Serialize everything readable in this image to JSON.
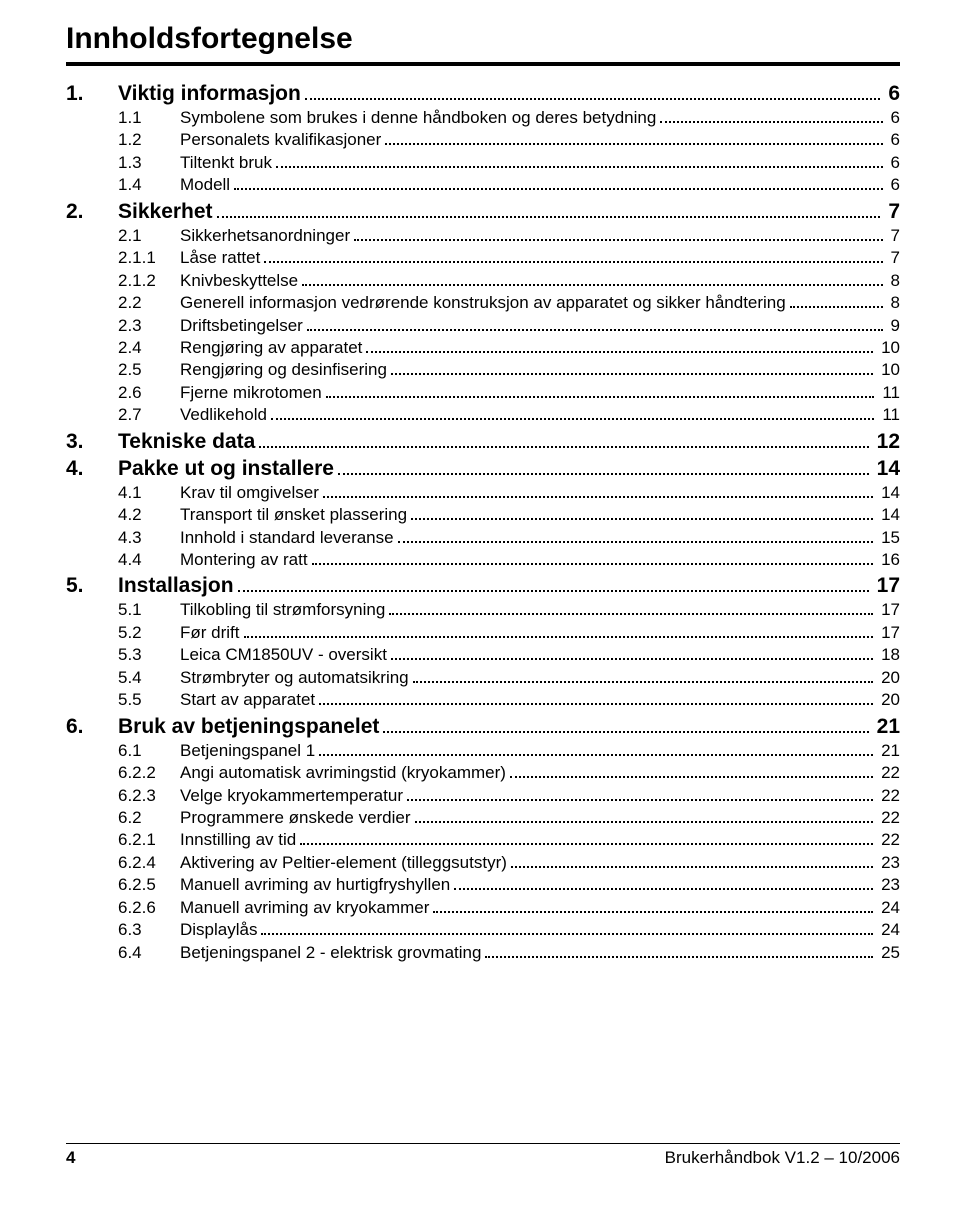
{
  "title": "Innholdsfortegnelse",
  "sections": [
    {
      "num": "1.",
      "label": "Viktig informasjon",
      "page": "6",
      "items": [
        {
          "num": "1.1",
          "label": "Symbolene som brukes i denne håndboken og deres betydning",
          "page": "6"
        },
        {
          "num": "1.2",
          "label": "Personalets kvalifikasjoner",
          "page": "6"
        },
        {
          "num": "1.3",
          "label": "Tiltenkt bruk",
          "page": "6"
        },
        {
          "num": "1.4",
          "label": "Modell",
          "page": "6"
        }
      ]
    },
    {
      "num": "2.",
      "label": "Sikkerhet",
      "page": "7",
      "items": [
        {
          "num": "2.1",
          "label": "Sikkerhetsanordninger",
          "page": "7"
        },
        {
          "num": "2.1.1",
          "label": "Låse rattet",
          "page": "7"
        },
        {
          "num": "2.1.2",
          "label": "Knivbeskyttelse",
          "page": "8"
        },
        {
          "num": "2.2",
          "label": "Generell informasjon vedrørende konstruksjon av apparatet og sikker håndtering",
          "page": "8"
        },
        {
          "num": "2.3",
          "label": "Driftsbetingelser",
          "page": "9"
        },
        {
          "num": "2.4",
          "label": "Rengjøring av apparatet",
          "page": "10"
        },
        {
          "num": "2.5",
          "label": "Rengjøring og desinfisering",
          "page": "10"
        },
        {
          "num": "2.6",
          "label": "Fjerne mikrotomen",
          "page": "11"
        },
        {
          "num": "2.7",
          "label": "Vedlikehold",
          "page": "11"
        }
      ]
    },
    {
      "num": "3.",
      "label": "Tekniske data",
      "page": "12",
      "items": []
    },
    {
      "num": "4.",
      "label": "Pakke ut og installere",
      "page": "14",
      "items": [
        {
          "num": "4.1",
          "label": "Krav til omgivelser",
          "page": "14"
        },
        {
          "num": "4.2",
          "label": "Transport til ønsket plassering",
          "page": "14"
        },
        {
          "num": "4.3",
          "label": "Innhold i standard leveranse",
          "page": "15"
        },
        {
          "num": "4.4",
          "label": "Montering av ratt",
          "page": "16"
        }
      ]
    },
    {
      "num": "5.",
      "label": "Installasjon",
      "page": "17",
      "items": [
        {
          "num": "5.1",
          "label": "Tilkobling til strømforsyning",
          "page": "17"
        },
        {
          "num": "5.2",
          "label": "Før drift",
          "page": "17"
        },
        {
          "num": "5.3",
          "label": "Leica CM1850UV - oversikt",
          "page": "18"
        },
        {
          "num": "5.4",
          "label": "Strømbryter og automatsikring",
          "page": "20"
        },
        {
          "num": "5.5",
          "label": "Start av apparatet",
          "page": "20"
        }
      ]
    },
    {
      "num": "6.",
      "label": "Bruk av betjeningspanelet",
      "page": "21",
      "items": [
        {
          "num": "6.1",
          "label": "Betjeningspanel 1",
          "page": "21"
        },
        {
          "num": "6.2.2",
          "label": "Angi automatisk avrimingstid (kryokammer)",
          "page": "22"
        },
        {
          "num": "6.2.3",
          "label": "Velge kryokammertemperatur",
          "page": "22"
        },
        {
          "num": "6.2",
          "label": "Programmere ønskede verdier",
          "page": "22"
        },
        {
          "num": "6.2.1",
          "label": "Innstilling av tid",
          "page": "22"
        },
        {
          "num": "6.2.4",
          "label": "Aktivering av Peltier-element (tilleggsutstyr)",
          "page": "23"
        },
        {
          "num": "6.2.5",
          "label": "Manuell avriming av hurtigfryshyllen",
          "page": "23"
        },
        {
          "num": "6.2.6",
          "label": "Manuell avriming av kryokammer",
          "page": "24"
        },
        {
          "num": "6.3",
          "label": "Displaylås",
          "page": "24"
        },
        {
          "num": "6.4",
          "label": "Betjeningspanel 2 - elektrisk grovmating",
          "page": "25"
        }
      ]
    }
  ],
  "footer": {
    "page": "4",
    "text": "Brukerhåndbok V1.2 – 10/2006"
  }
}
